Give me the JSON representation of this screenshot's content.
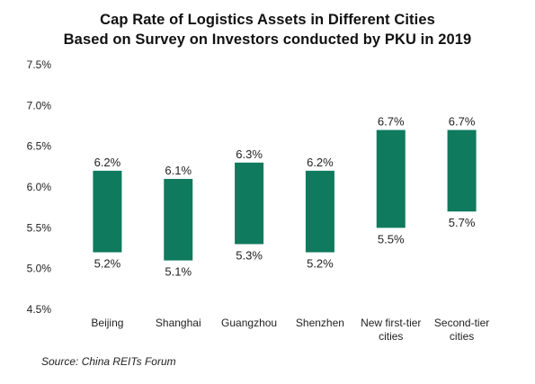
{
  "chart_data": {
    "type": "bar",
    "subtype": "floating-range",
    "title": "Cap Rate of Logistics Assets in Different Cities",
    "subtitle": "Based on Survey on Investors conducted by PKU in 2019",
    "categories": [
      [
        "Beijing"
      ],
      [
        "Shanghai"
      ],
      [
        "Guangzhou"
      ],
      [
        "Shenzhen"
      ],
      [
        "New first-tier",
        "cities"
      ],
      [
        "Second-tier",
        "cities"
      ]
    ],
    "high": [
      6.2,
      6.1,
      6.3,
      6.2,
      6.7,
      6.7
    ],
    "low": [
      5.2,
      5.1,
      5.3,
      5.2,
      5.5,
      5.7
    ],
    "high_labels": [
      "6.2%",
      "6.1%",
      "6.3%",
      "6.2%",
      "6.7%",
      "6.7%"
    ],
    "low_labels": [
      "5.2%",
      "5.1%",
      "5.3%",
      "5.2%",
      "5.5%",
      "5.7%"
    ],
    "ylim": [
      4.5,
      7.5
    ],
    "yticks": [
      4.5,
      5.0,
      5.5,
      6.0,
      6.5,
      7.0,
      7.5
    ],
    "ytick_labels": [
      "4.5%",
      "5.0%",
      "5.5%",
      "6.0%",
      "6.5%",
      "7.0%",
      "7.5%"
    ],
    "xlabel": "",
    "ylabel": "",
    "grid": false,
    "legend": "none",
    "bar_color": "#0f7a5e",
    "source": "Source: China REITs Forum"
  }
}
